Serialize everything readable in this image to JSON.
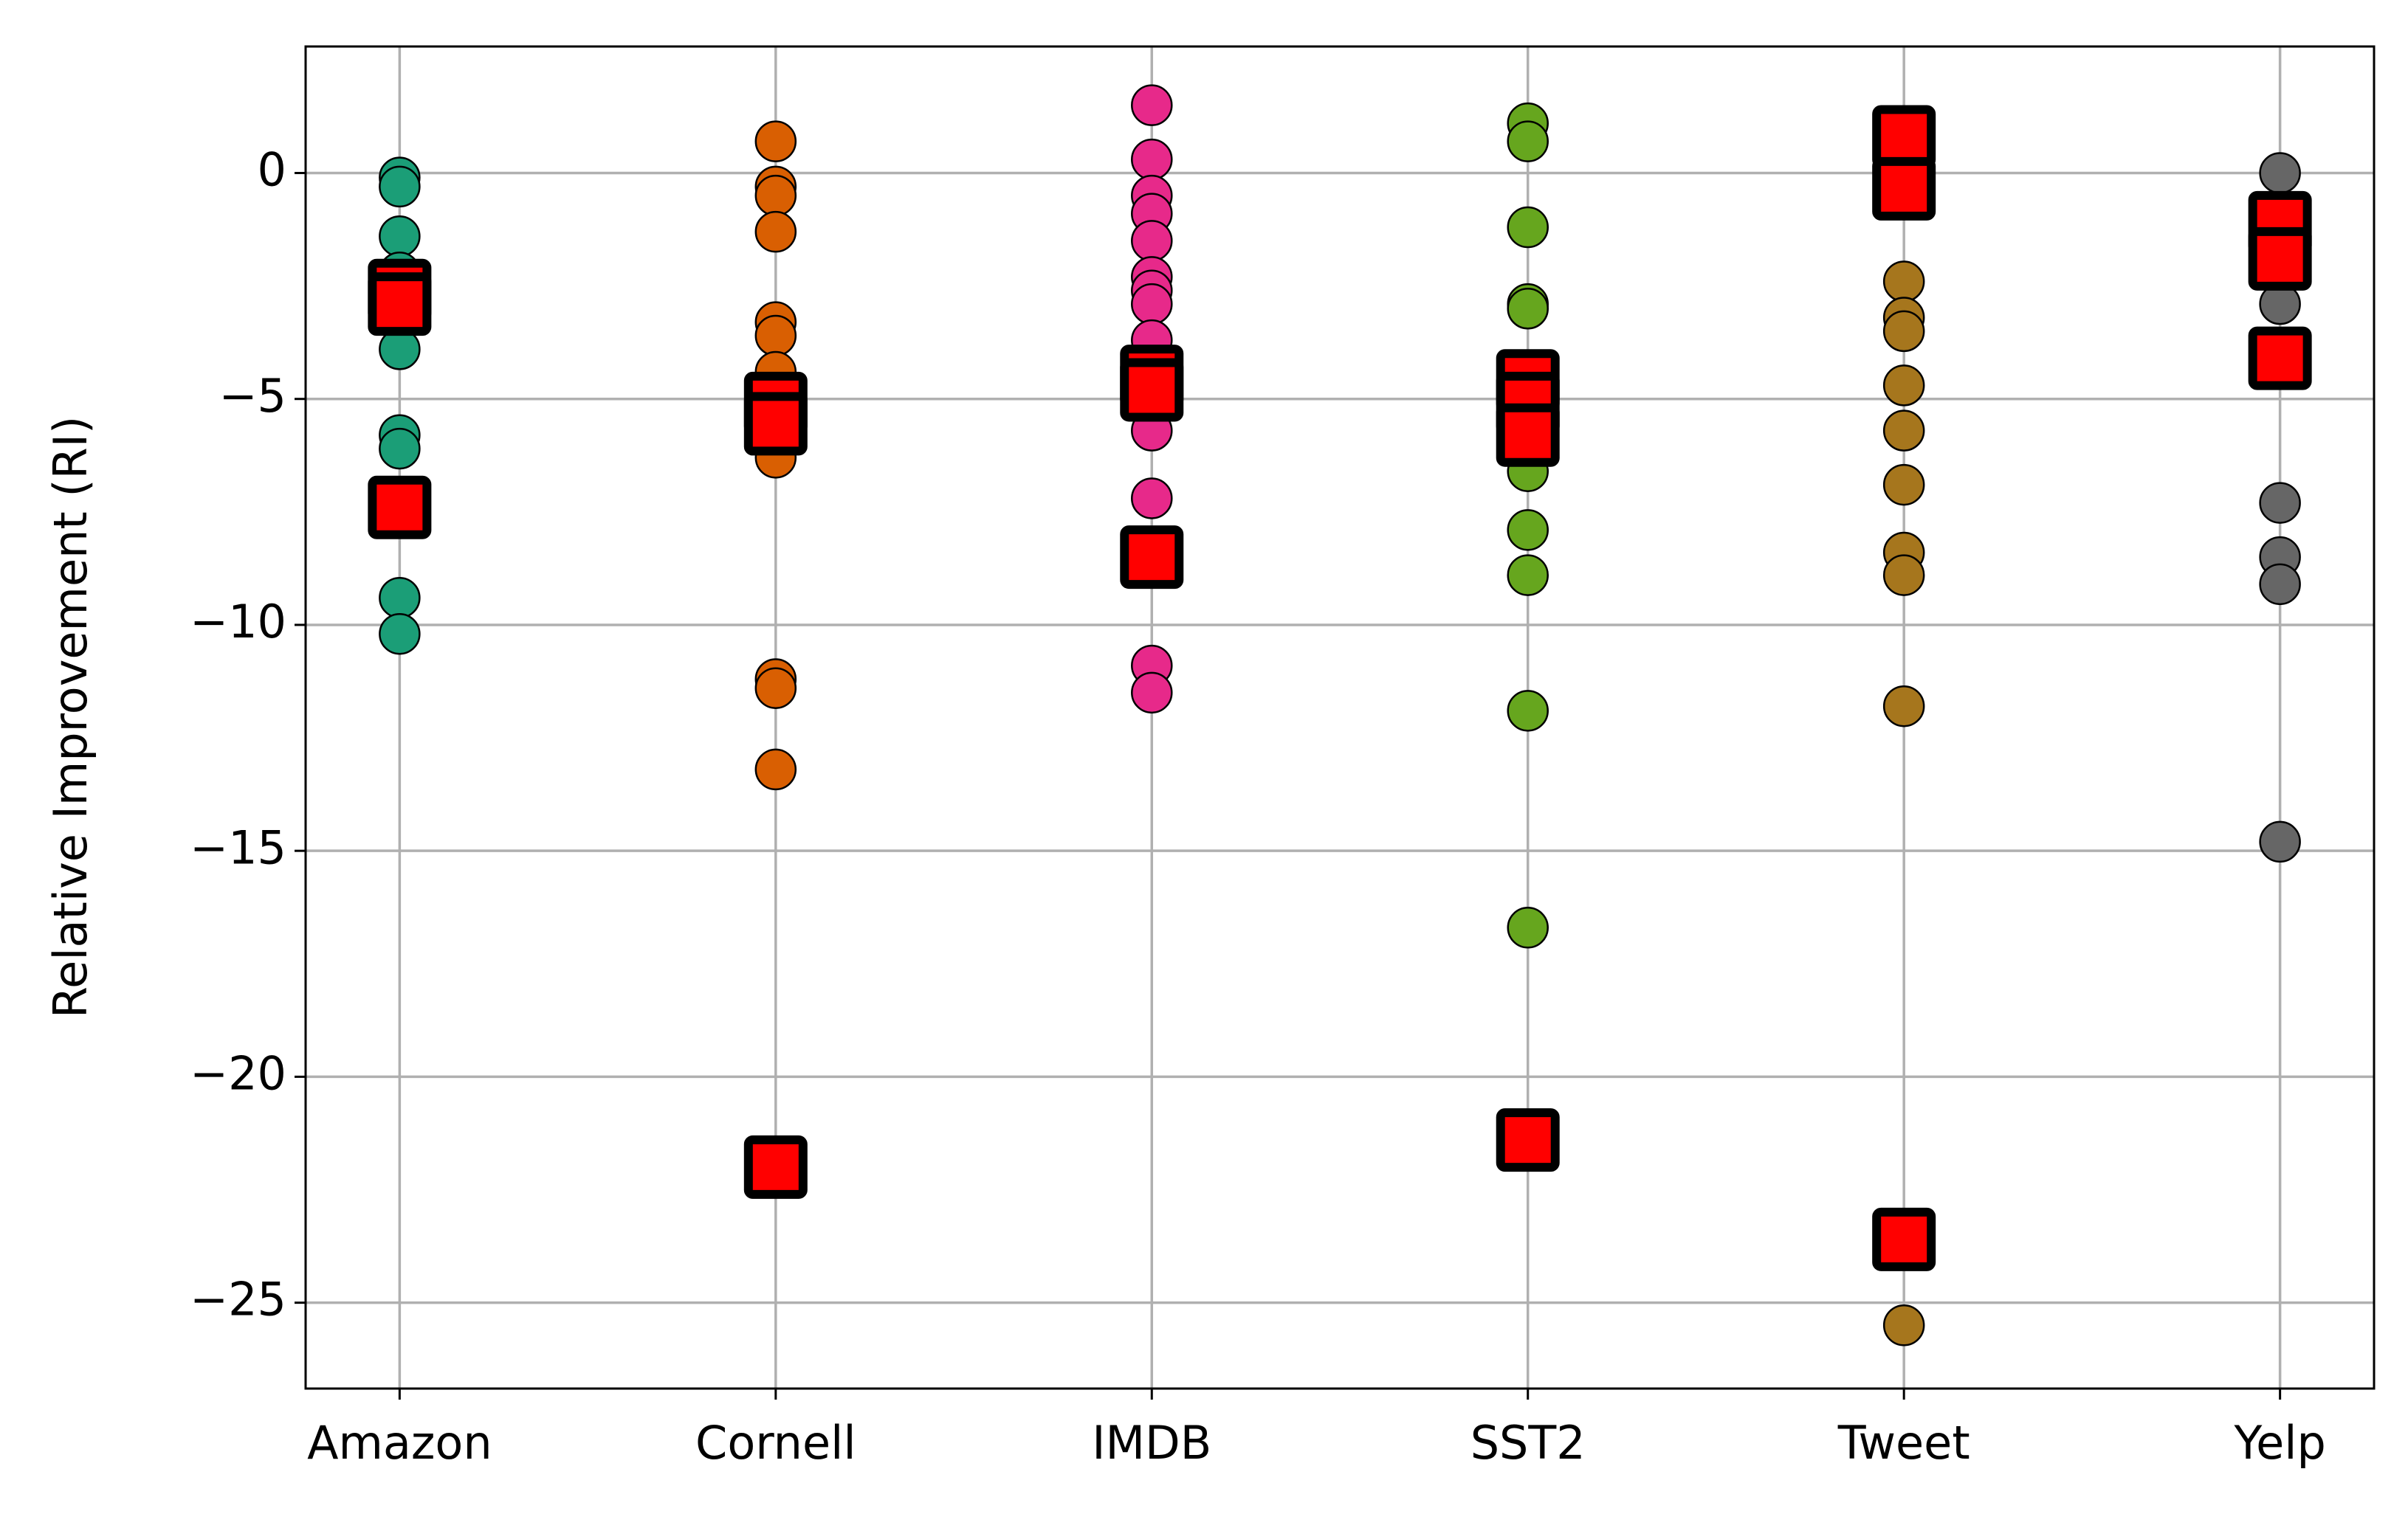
{
  "chart_data": {
    "type": "scatter",
    "ylabel": "Relative Improvement (RI)",
    "categories": [
      "Amazon",
      "Cornell",
      "IMDB",
      "SST2",
      "Tweet",
      "Yelp"
    ],
    "colors": [
      "#1b9e77",
      "#d95f02",
      "#e7298a",
      "#66a61e",
      "#a6761d",
      "#666666"
    ],
    "values": [
      [
        -0.1,
        -0.3,
        -1.4,
        -2.2,
        -3.9,
        -5.8,
        -6.1,
        -9.4,
        -10.2
      ],
      [
        0.7,
        -0.3,
        -0.5,
        -1.3,
        -3.3,
        -3.6,
        -4.4,
        -6.3,
        -11.2,
        -11.4,
        -13.2
      ],
      [
        1.5,
        0.3,
        -0.5,
        -0.9,
        -1.5,
        -2.3,
        -2.6,
        -2.9,
        -3.7,
        -5.7,
        -7.2,
        -10.9,
        -11.5
      ],
      [
        1.1,
        0.7,
        -1.2,
        -2.9,
        -3.0,
        -6.6,
        -7.9,
        -8.9,
        -11.9,
        -16.7
      ],
      [
        -2.4,
        -3.2,
        -3.5,
        -4.7,
        -5.7,
        -6.9,
        -8.4,
        -8.9,
        -11.8,
        -25.5
      ],
      [
        0.0,
        -2.9,
        -7.3,
        -8.5,
        -9.1,
        -14.8
      ]
    ],
    "highlight_color": "#ff0000",
    "highlights": [
      [
        -2.6,
        -2.9,
        -7.4
      ],
      [
        -5.1,
        -5.55,
        -22.0
      ],
      [
        -4.5,
        -4.8,
        -8.5
      ],
      [
        -4.6,
        -5.1,
        -5.8,
        -21.4
      ],
      [
        0.8,
        -0.35,
        -23.6
      ],
      [
        -1.1,
        -1.9,
        -4.1
      ]
    ],
    "ylim": [
      -26.9,
      2.8
    ],
    "yticks": [
      {
        "value": 0,
        "label": "0"
      },
      {
        "value": -5,
        "label": "−5"
      },
      {
        "value": -10,
        "label": "−10"
      },
      {
        "value": -15,
        "label": "−15"
      },
      {
        "value": -20,
        "label": "−20"
      },
      {
        "value": -25,
        "label": "−25"
      }
    ],
    "grid": true
  }
}
